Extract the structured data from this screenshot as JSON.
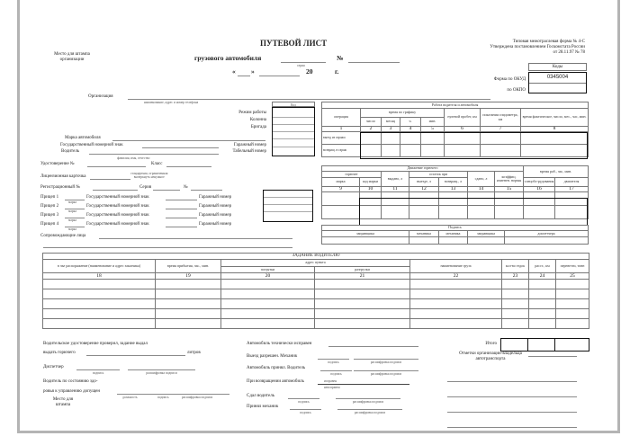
{
  "header": {
    "stamp_place": [
      "Место для штампа",
      "организации"
    ],
    "title": "ПУТЕВОЙ ЛИСТ",
    "subtitle": "грузового автомобиля",
    "series_caption": "серия",
    "number_sign": "№",
    "date_open": "«",
    "date_close": "»",
    "year": "20",
    "year_suffix": "г.",
    "form_info": [
      "Типовая межотраслевая форма № 4-С",
      "Утверждена постановлением Госкомстата России",
      "от 28.11.97 № 78"
    ],
    "codes_label": "Коды",
    "okud_label": "Форма по ОКУД",
    "okud_value": "0345004",
    "okpo_label": "по ОКПО"
  },
  "org": {
    "label": "Организация",
    "caption": "наименование, адрес и номер телефона",
    "code_label": "Код",
    "work_mode": "Режим работы",
    "column": "Колонна",
    "brigade": "Бригада"
  },
  "vehicle": {
    "make": "Марка автомобиля",
    "plate": "Государственный номерной знак",
    "garage_no": "Гаражный номер",
    "driver": "Водитель",
    "tab_no": "Табельный номер",
    "driver_caption": "фамилия, имя, отчество",
    "license": "Удостоверение №",
    "class": "Класс",
    "card": "Лицензионная карточка",
    "card_caption": [
      "стандартная, ограниченная",
      "вычеркнуть ненужное"
    ],
    "reg_no": "Регистрационный №",
    "series": "Серия",
    "no": "№"
  },
  "trailers": {
    "items": [
      "Прицеп 1",
      "Прицеп 2",
      "Прицеп 3",
      "Прицеп 4"
    ],
    "make_caption": "марка",
    "plate": "Государственный номерной знак",
    "garage_no": "Гаражный номер",
    "escorts": "Сопровождающие лица"
  },
  "work_table": {
    "title": "Работа водителя и автомобиля",
    "operation": "операция",
    "schedule": "время по графику",
    "sub": [
      "число",
      "месяц",
      "ч.",
      "мин."
    ],
    "zero_run": "нулевой пробег, км",
    "odometer": "показания спидометра, км",
    "actual": "время фактическое, число, мес., час, мин.",
    "numbers": [
      "1",
      "2",
      "3",
      "4",
      "5",
      "6",
      "7",
      "8"
    ],
    "rows": [
      "выезд из гаража",
      "возвращ. в гараж"
    ]
  },
  "fuel_table": {
    "title": "Движение горючего",
    "fuel": "горючее",
    "brand": "марка",
    "brand_code": "код марки",
    "issued": "выдано, л",
    "remain": "остаток при",
    "on_exit": "выезде, л",
    "on_return": "возвращ., л",
    "handed": "сдано, л",
    "coef": "коэффиц. изменен. нормы",
    "work_time": "время раб., час, мин.",
    "special": "спецобо-рудования",
    "engine": "двигателя",
    "numbers": [
      "9",
      "10",
      "11",
      "12",
      "13",
      "14",
      "15",
      "16",
      "17"
    ],
    "sign_title": "Подпись",
    "signers": [
      "заправщика",
      "механика",
      "механика",
      "заправщика",
      "диспетчера"
    ]
  },
  "task_table": {
    "title": "ЗАДАНИЕ ВОДИТЕЛЮ",
    "col18": "в чье распоряжение (наименование и адрес заказчика)",
    "col19": "время прибытия, час., мин.",
    "address": "адрес пункта",
    "loading": "погрузки",
    "unloading": "разгрузки",
    "cargo": "наименование груза",
    "trips": "кол-во ездок",
    "distance": "расст., км",
    "tons": "перевезти, тонн",
    "numbers": [
      "18",
      "19",
      "20",
      "21",
      "22",
      "23",
      "24",
      "25"
    ],
    "total": "Итого"
  },
  "bottom": {
    "license_checked": "Водительское удостоверение проверил, задание выдал",
    "fuel_issue": "выдать горючего",
    "liters": "литров",
    "dispatcher": "Диспетчер",
    "signature": "подпись",
    "signature_decode": "расшифровка подписи",
    "health1": "Водитель по состоянию здо-",
    "health2": "ровья к управлению допущен",
    "position": "должность",
    "stamp": [
      "Место для",
      "штампа"
    ],
    "tech_ok": "Автомобиль технически исправен",
    "exit_allowed": "Выезд разрешен. Механик",
    "accepted_driver": "Автомобиль принял. Водитель",
    "on_return": "При возвращении автомобиль",
    "state_ok": "исправен",
    "state_bad": "неисправен",
    "handed_driver": "Сдал водитель",
    "accepted_mechanic": "Принял механик",
    "owner_marks": [
      "Отметки организации-владельца",
      "автотранспорта"
    ]
  }
}
